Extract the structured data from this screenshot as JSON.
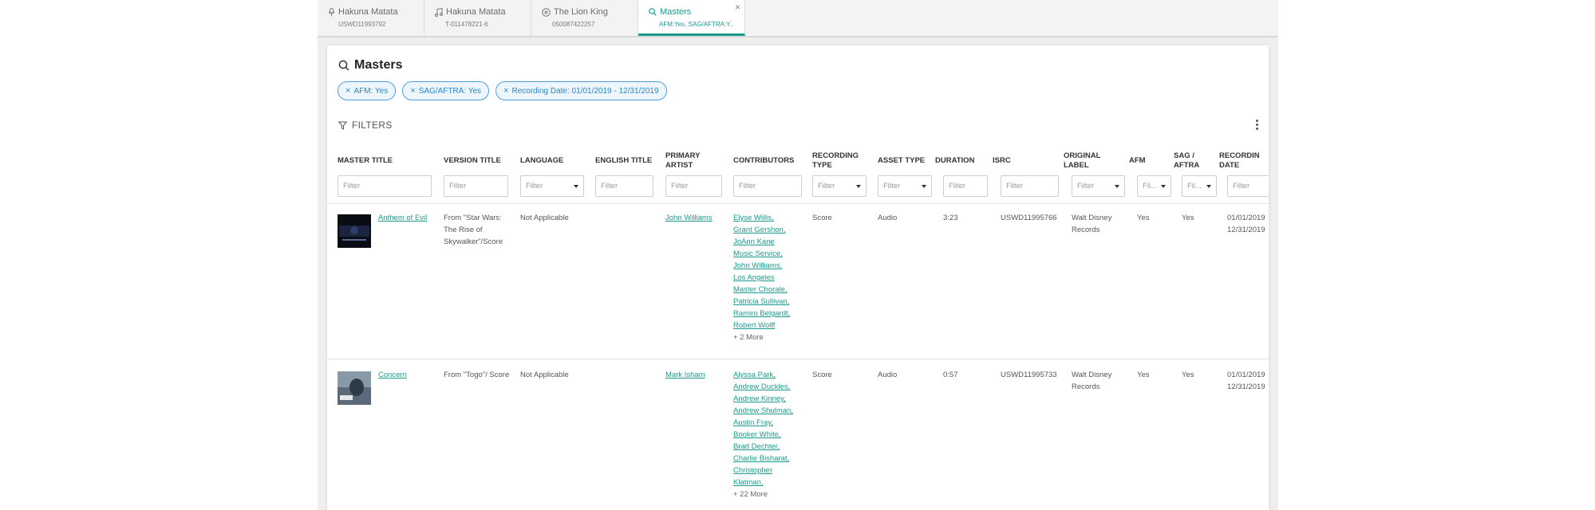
{
  "tabs": [
    {
      "title": "Hakuna Matata",
      "subtitle": "USWD11993792",
      "icon": "microphone-icon"
    },
    {
      "title": "Hakuna Matata",
      "subtitle": "T-011478221-6",
      "icon": "music-note-icon"
    },
    {
      "title": "The Lion King",
      "subtitle": "050087422257",
      "icon": "disc-icon"
    },
    {
      "title": "Masters",
      "subtitle": "AFM:Yes, SAG/AFTRA:Y...",
      "icon": "search-icon"
    }
  ],
  "tab_close": "×",
  "page": {
    "title": "Masters",
    "chips": [
      "AFM: Yes",
      "SAG/AFTRA: Yes",
      "Recording Date: 01/01/2019 - 12/31/2019"
    ],
    "chip_close": "×",
    "filters_label": "FILTERS"
  },
  "columns": [
    {
      "label": "MASTER TITLE",
      "filter": "Filter",
      "type": "text"
    },
    {
      "label": "VERSION TITLE",
      "filter": "Filter",
      "type": "text"
    },
    {
      "label": "LANGUAGE",
      "filter": "Filter",
      "type": "select"
    },
    {
      "label": "ENGLISH TITLE",
      "filter": "Filter",
      "type": "text"
    },
    {
      "label": "PRIMARY ARTIST",
      "filter": "Filter",
      "type": "text"
    },
    {
      "label": "CONTRIBUTORS",
      "filter": "Filter",
      "type": "text"
    },
    {
      "label": "RECORDING TYPE",
      "filter": "Filter",
      "type": "select"
    },
    {
      "label": "ASSET TYPE",
      "filter": "Filter",
      "type": "select"
    },
    {
      "label": "DURATION",
      "filter": "Filter",
      "type": "text"
    },
    {
      "label": "ISRC",
      "filter": "Filter",
      "type": "text"
    },
    {
      "label": "ORIGINAL LABEL",
      "filter": "Filter",
      "type": "select"
    },
    {
      "label": "AFM",
      "filter": "Fil...",
      "type": "select"
    },
    {
      "label": "SAG / AFTRA",
      "filter": "Fil...",
      "type": "select"
    },
    {
      "label": "RECORDIN DATE",
      "filter": "Filter",
      "type": "text"
    }
  ],
  "rows": [
    {
      "master_title": "Anthem of Evil",
      "version_title": "From \"Star Wars: The Rise of Skywalker\"/Score",
      "language": "Not Applicable",
      "english_title": "",
      "primary_artist": "John Williams",
      "contributors": [
        "Elyse Willis,",
        "Grant Gershon,",
        "JoAnn Kane",
        "Music Service,",
        "John Williams,",
        "Los Angeles",
        "Master Chorale,",
        "Patricia Sullivan,",
        "Ramiro Belgardt,",
        "Robert Wolff"
      ],
      "contributors_more": "+ 2 More",
      "recording_type": "Score",
      "asset_type": "Audio",
      "duration": "3:23",
      "isrc": "USWD11995766",
      "original_label": "Walt Disney Records",
      "afm": "Yes",
      "sag_aftra": "Yes",
      "recording_date_start": "01/01/2019",
      "recording_date_end": "12/31/2019"
    },
    {
      "master_title": "Concern",
      "version_title": "From \"Togo\"/ Score",
      "language": "Not Applicable",
      "english_title": "",
      "primary_artist": "Mark Isham",
      "contributors": [
        "Alyssa Park,",
        "Andrew Duckles,",
        "Andrew Kinney,",
        "Andrew Shulman,",
        "Austin Fray,",
        "Booker White,",
        "Brad Dechter,",
        "Charlie Bisharat,",
        "Christopher",
        "Klatman,"
      ],
      "contributors_more": "+ 22 More",
      "recording_type": "Score",
      "asset_type": "Audio",
      "duration": "0:57",
      "isrc": "USWD11995733",
      "original_label": "Walt Disney Records",
      "afm": "Yes",
      "sag_aftra": "Yes",
      "recording_date_start": "01/01/2019",
      "recording_date_end": "12/31/2019"
    }
  ]
}
